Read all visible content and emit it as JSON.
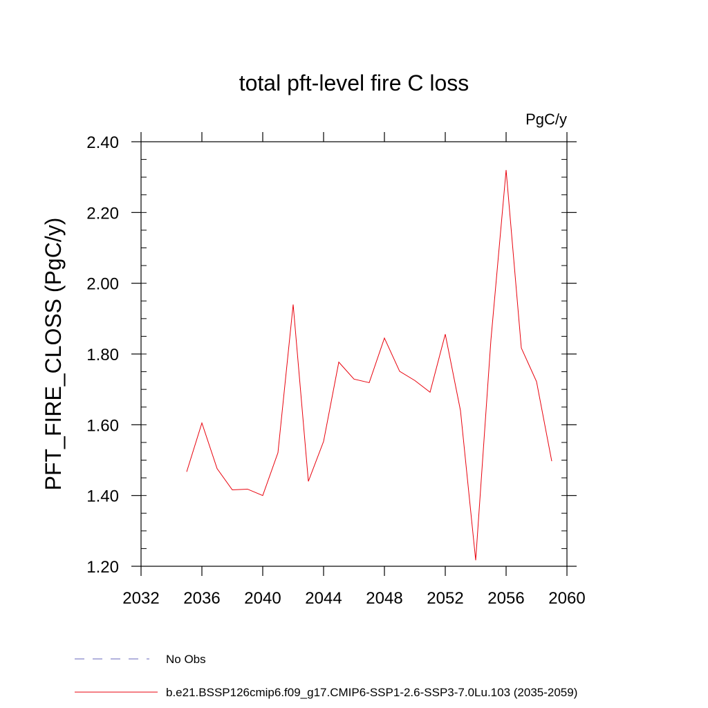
{
  "chart_data": {
    "type": "line",
    "title": "total pft-level fire C loss",
    "units_label": "PgC/y",
    "xlabel": "",
    "ylabel": "PFT_FIRE_CLOSS  (PgC/y)",
    "xlim": [
      2032,
      2060
    ],
    "ylim": [
      1.2,
      2.4
    ],
    "xticks": [
      2032,
      2036,
      2040,
      2044,
      2048,
      2052,
      2056,
      2060
    ],
    "xtick_labels": [
      "2032",
      "2036",
      "2040",
      "2044",
      "2048",
      "2052",
      "2056",
      "2060"
    ],
    "yticks": [
      1.2,
      1.4,
      1.6,
      1.8,
      2.0,
      2.2,
      2.4
    ],
    "ytick_labels": [
      "1.20",
      "1.40",
      "1.60",
      "1.80",
      "2.00",
      "2.20",
      "2.40"
    ],
    "grid": false,
    "legend_position": "bottom",
    "series": [
      {
        "name": "b.e21.BSSP126cmip6.f09_g17.CMIP6-SSP1-2.6-SSP3-7.0Lu.103 (2035-2059)",
        "color": "#e8000b",
        "style": "solid",
        "x": [
          2035,
          2036,
          2037,
          2038,
          2039,
          2040,
          2041,
          2042,
          2043,
          2044,
          2045,
          2046,
          2047,
          2048,
          2049,
          2050,
          2051,
          2052,
          2053,
          2054,
          2055,
          2056,
          2057,
          2058,
          2059
        ],
        "values": [
          1.467,
          1.605,
          1.476,
          1.416,
          1.418,
          1.4,
          1.521,
          1.94,
          1.44,
          1.553,
          1.777,
          1.729,
          1.719,
          1.845,
          1.751,
          1.725,
          1.692,
          1.856,
          1.64,
          1.217,
          1.839,
          2.32,
          1.817,
          1.722,
          1.497
        ]
      },
      {
        "name": "No Obs",
        "color": "#6666bb",
        "style": "dashed",
        "x": [],
        "values": []
      }
    ]
  }
}
